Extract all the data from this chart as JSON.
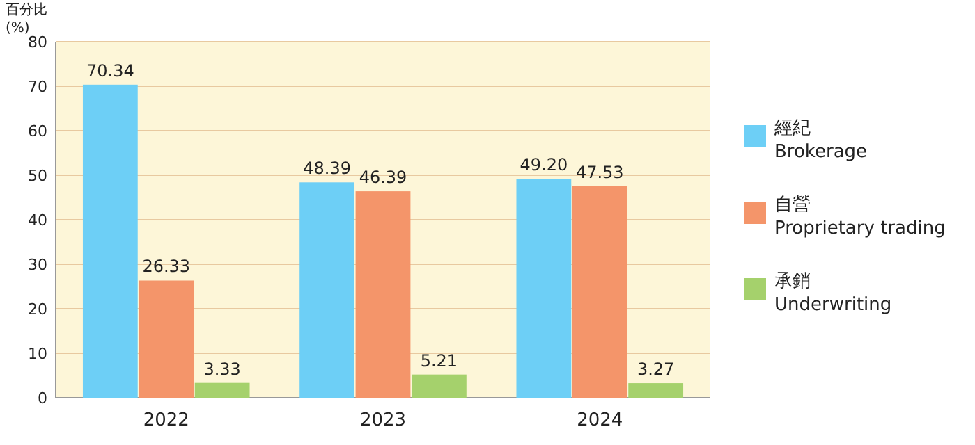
{
  "chart_data": {
    "type": "bar",
    "ylabel": "百分比\n(%)",
    "categories": [
      "2022",
      "2023",
      "2024"
    ],
    "series": [
      {
        "name": "經紀\nBrokerage",
        "color": "#6dcff6",
        "values": [
          70.34,
          48.39,
          49.2
        ],
        "value_labels": [
          "70.34",
          "48.39",
          "49.20"
        ]
      },
      {
        "name": "自營\nProprietary trading",
        "color": "#f4956a",
        "values": [
          26.33,
          46.39,
          47.53
        ],
        "value_labels": [
          "26.33",
          "46.39",
          "47.53"
        ]
      },
      {
        "name": "承銷\nUnderwriting",
        "color": "#a5d16c",
        "values": [
          3.33,
          5.21,
          3.27
        ],
        "value_labels": [
          "3.33",
          "5.21",
          "3.27"
        ]
      }
    ],
    "ylim": [
      0,
      80
    ],
    "yticks": [
      0,
      10,
      20,
      30,
      40,
      50,
      60,
      70,
      80
    ],
    "grid": "y",
    "legend": "right"
  }
}
